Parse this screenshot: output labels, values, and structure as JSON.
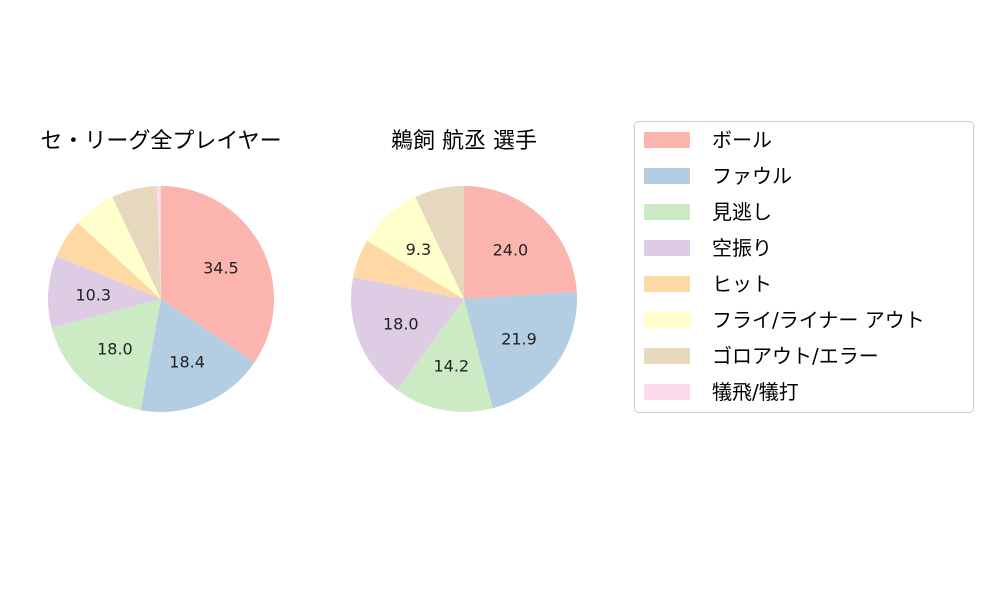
{
  "chart_data": [
    {
      "type": "pie",
      "title": "セ・リーグ全プレイヤー",
      "categories": [
        "ボール",
        "ファウル",
        "見逃し",
        "空振り",
        "ヒット",
        "フライ/ライナー アウト",
        "ゴロアウト/エラー",
        "犠飛/犠打"
      ],
      "values": [
        34.5,
        18.4,
        18.0,
        10.3,
        5.6,
        6.1,
        6.5,
        0.6
      ],
      "labels": [
        "34.5",
        "18.4",
        "18.0",
        "10.3",
        "",
        "",
        "",
        ""
      ]
    },
    {
      "type": "pie",
      "title": "鵜飼 航丞  選手",
      "categories": [
        "ボール",
        "ファウル",
        "見逃し",
        "空振り",
        "ヒット",
        "フライ/ライナー アウト",
        "ゴロアウト/エラー",
        "犠飛/犠打"
      ],
      "values": [
        24.0,
        21.9,
        14.2,
        18.0,
        5.5,
        9.3,
        7.1,
        0.0
      ],
      "labels": [
        "24.0",
        "21.9",
        "14.2",
        "18.0",
        "",
        "9.3",
        "",
        ""
      ]
    }
  ],
  "legend": {
    "items": [
      "ボール",
      "ファウル",
      "見逃し",
      "空振り",
      "ヒット",
      "フライ/ライナー アウト",
      "ゴロアウト/エラー",
      "犠飛/犠打"
    ],
    "colors": [
      "#fbb4ae",
      "#b3cde3",
      "#ccebc5",
      "#decbe4",
      "#fed9a6",
      "#ffffcc",
      "#e5d8bd",
      "#fddaec"
    ],
    "placement": "right"
  }
}
